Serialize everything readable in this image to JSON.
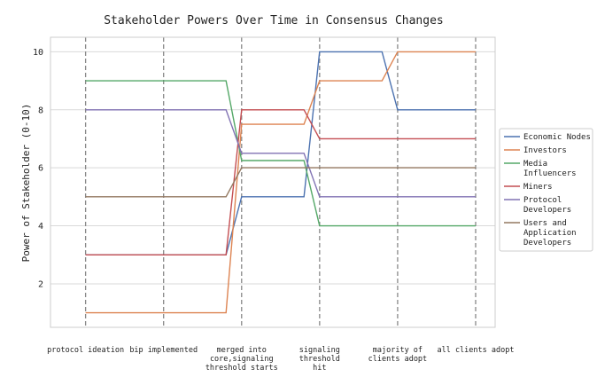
{
  "chart_data": {
    "type": "line",
    "title": "Stakeholder Powers Over Time in Consensus Changes",
    "ylabel": "Power of Stakeholder (0-10)",
    "xlabel": "",
    "x_ticks": [
      [
        "protocol ideation"
      ],
      [
        "bip implemented"
      ],
      [
        "merged into",
        "core,signaling",
        "threshold starts"
      ],
      [
        "signaling",
        "threshold",
        "hit"
      ],
      [
        "majority of",
        "clients adopt"
      ],
      [
        "all clients adopt"
      ]
    ],
    "x_positions": [
      0,
      1,
      2,
      3,
      4,
      5
    ],
    "x_range": [
      -0.45,
      5.25
    ],
    "y_ticks": [
      2,
      4,
      6,
      8,
      10
    ],
    "ylim": [
      0.5,
      10.5
    ],
    "grid": "horizontal",
    "vlines": [
      0,
      1,
      2,
      3,
      4,
      5
    ],
    "legend_position": "right",
    "series": [
      {
        "name": [
          "Economic Nodes"
        ],
        "color": "#4c72b0",
        "x": [
          0,
          1,
          1.8,
          2,
          2.8,
          3,
          3.8,
          4,
          5
        ],
        "y": [
          3,
          3,
          3,
          5,
          5,
          10,
          10,
          8,
          8
        ]
      },
      {
        "name": [
          "Investors"
        ],
        "color": "#dd8452",
        "x": [
          0,
          1,
          1.8,
          2,
          2.8,
          3,
          3.8,
          4,
          5
        ],
        "y": [
          1,
          1,
          1,
          7.5,
          7.5,
          9,
          9,
          10,
          10
        ]
      },
      {
        "name": [
          "Media",
          "Influencers"
        ],
        "color": "#55a868",
        "x": [
          0,
          1,
          1.8,
          2,
          2.8,
          3,
          3.8,
          4,
          5
        ],
        "y": [
          9,
          9,
          9,
          6.25,
          6.25,
          4,
          4,
          4,
          4
        ]
      },
      {
        "name": [
          "Miners"
        ],
        "color": "#c44e52",
        "x": [
          0,
          1,
          1.8,
          2,
          2.8,
          3,
          3.8,
          4,
          5
        ],
        "y": [
          3,
          3,
          3,
          8,
          8,
          7,
          7,
          7,
          7
        ]
      },
      {
        "name": [
          "Protocol",
          "Developers"
        ],
        "color": "#8172b3",
        "x": [
          0,
          1,
          1.8,
          2,
          2.8,
          3,
          3.8,
          4,
          5
        ],
        "y": [
          8,
          8,
          8,
          6.5,
          6.5,
          5,
          5,
          5,
          5
        ]
      },
      {
        "name": [
          "Users and",
          "Application",
          "Developers"
        ],
        "color": "#937860",
        "x": [
          0,
          1,
          1.8,
          2,
          2.8,
          3,
          3.8,
          4,
          5
        ],
        "y": [
          5,
          5,
          5,
          6,
          6,
          6,
          6,
          6,
          6
        ]
      }
    ]
  }
}
